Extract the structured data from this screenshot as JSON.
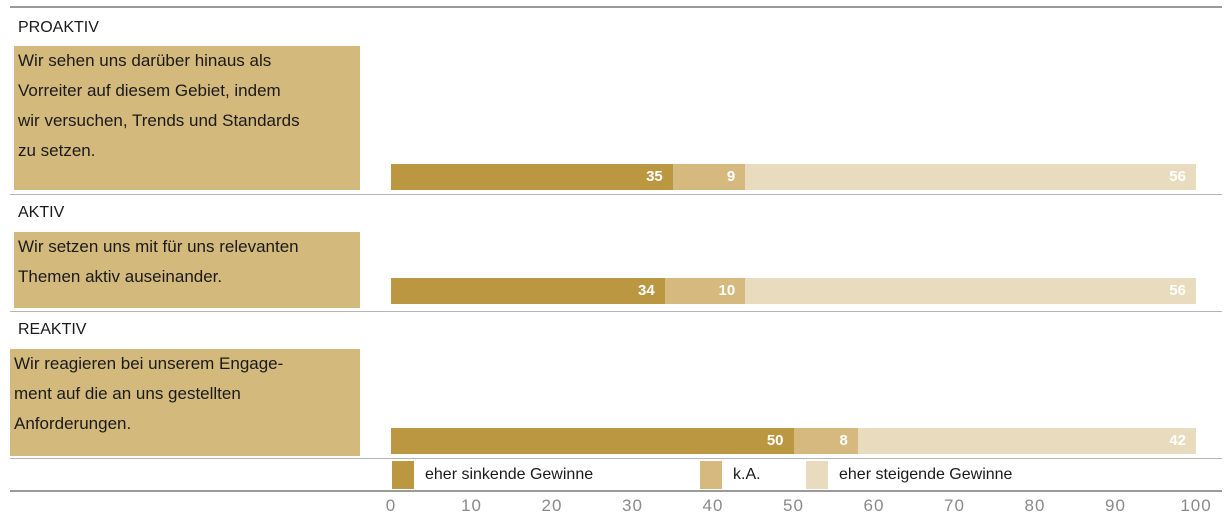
{
  "chart_data": {
    "type": "bar",
    "stacked": true,
    "orientation": "horizontal",
    "groups": [
      {
        "title": "PROAKTIV",
        "description": "Wir sehen uns darüber hinaus als\nVorreiter auf diesem Gebiet, indem\nwir versuchen, Trends und Standards\nzu setzen.",
        "values": [
          35,
          9,
          56
        ]
      },
      {
        "title": "AKTIV",
        "description": "Wir setzen uns mit für uns relevanten\nThemen aktiv auseinander.",
        "values": [
          34,
          10,
          56
        ]
      },
      {
        "title": "REAKTIV",
        "description": "Wir reagieren bei unserem Engage-\nment auf die an uns gestellten\nAnforderungen.",
        "values": [
          50,
          8,
          42
        ]
      }
    ],
    "series": [
      {
        "name": "eher sinkende Gewinne",
        "color": "#bc9742"
      },
      {
        "name": "k.A.",
        "color": "#d5b97e"
      },
      {
        "name": "eher steigende Gewinne",
        "color": "#e9dbbd"
      }
    ],
    "xlim": [
      0,
      100
    ],
    "xticks": [
      "0",
      "10",
      "20",
      "30",
      "40",
      "50",
      "60",
      "70",
      "80",
      "90",
      "100"
    ],
    "legend": "bottom"
  }
}
